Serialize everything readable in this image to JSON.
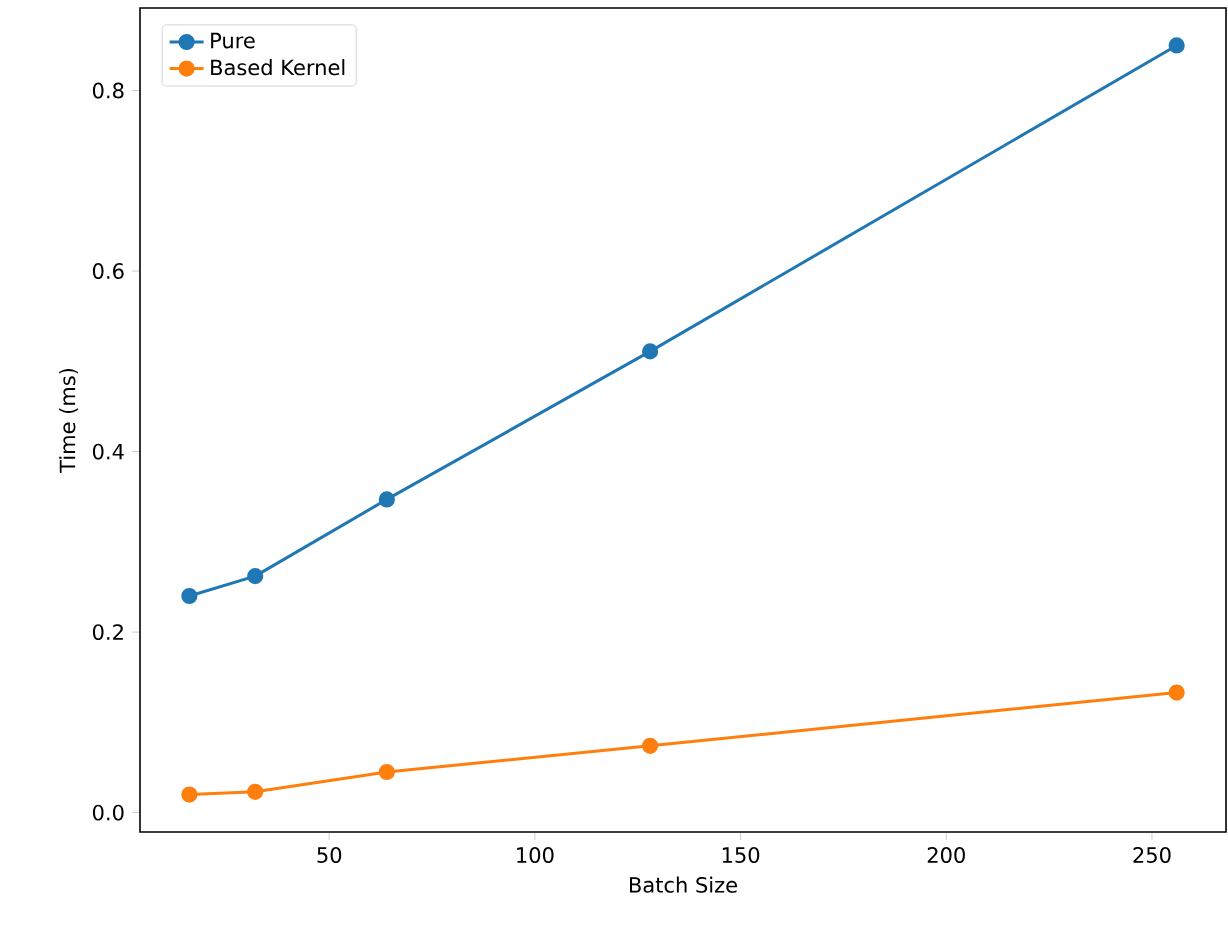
{
  "chart_data": {
    "type": "line",
    "xlabel": "Batch Size",
    "ylabel": "Time (ms)",
    "x": [
      16,
      32,
      64,
      128,
      256
    ],
    "series": [
      {
        "name": "Pure",
        "color": "#1f77b4",
        "values": [
          0.24,
          0.262,
          0.347,
          0.511,
          0.85
        ]
      },
      {
        "name": "Based Kernel",
        "color": "#ff7f0e",
        "values": [
          0.02,
          0.023,
          0.045,
          0.074,
          0.133
        ]
      }
    ],
    "xlim": [
      4,
      268
    ],
    "ylim": [
      -0.0215,
      0.8915
    ],
    "xticks": [
      50,
      100,
      150,
      200,
      250
    ],
    "yticks": [
      {
        "value": 0,
        "label": "0.0"
      },
      {
        "value": 0.2,
        "label": "0.2"
      },
      {
        "value": 0.4,
        "label": "0.4"
      },
      {
        "value": 0.6,
        "label": "0.6"
      },
      {
        "value": 0.8,
        "label": "0.8"
      }
    ],
    "legend": "top left",
    "marker": "circle",
    "line_style": "solid",
    "grid": false
  }
}
